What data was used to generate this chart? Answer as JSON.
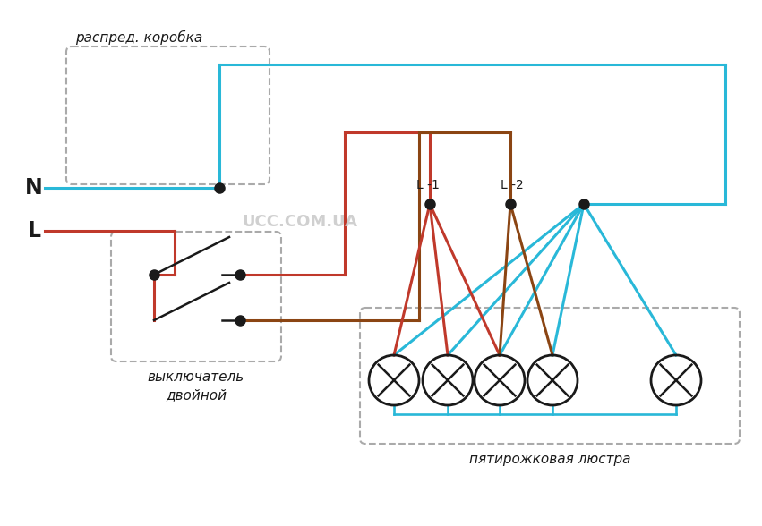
{
  "bg_color": "#ffffff",
  "cyan": "#29b8d8",
  "red": "#c0392b",
  "brown": "#8B4513",
  "black": "#1a1a1a",
  "gray": "#aaaaaa",
  "watermark": "UCC.COM.UA",
  "label_N": "N",
  "label_L": "L",
  "label_L1": "L -1",
  "label_L2": "L -2",
  "label_distbox": "распред. коробка",
  "label_switch": "выключатель",
  "label_double": "двойной",
  "label_chandelier": "пятирожковая люстра"
}
